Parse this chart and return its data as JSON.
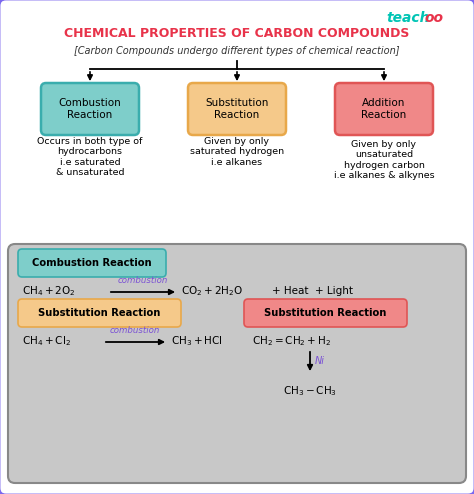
{
  "title": "CHEMICAL PROPERTIES OF CARBON COMPOUNDS",
  "subtitle": "[Carbon Compounds undergo different types of chemical reaction]",
  "bg_color": "#ffffff",
  "outer_border_color": "#7b68ee",
  "card_bg": "#c8c8c8",
  "boxes": [
    {
      "label": "Combustion\nReaction",
      "color": "#7ececa",
      "border": "#3aadad"
    },
    {
      "label": "Substitution\nReaction",
      "color": "#f5c98a",
      "border": "#e8a84a"
    },
    {
      "label": "Addition\nReaction",
      "color": "#f08888",
      "border": "#e05555"
    }
  ],
  "descriptions": [
    "Occurs in both type of\nhydrocarbons\ni.e saturated\n& unsaturated",
    "Given by only\nsaturated hydrogen\ni.e alkanes",
    "Given by only\nunsaturated\nhydrogen carbon\ni.e alkanes & alkynes"
  ],
  "reaction_box_color": "#7ececa",
  "reaction_box_border": "#3aadad",
  "subst_box_color": "#f5c98a",
  "subst_box_border": "#e8a84a",
  "addition_box_color": "#f08888",
  "addition_box_border": "#e05555",
  "title_color": "#e8334a",
  "subtitle_color": "#333333",
  "purple_color": "#7b52d4"
}
